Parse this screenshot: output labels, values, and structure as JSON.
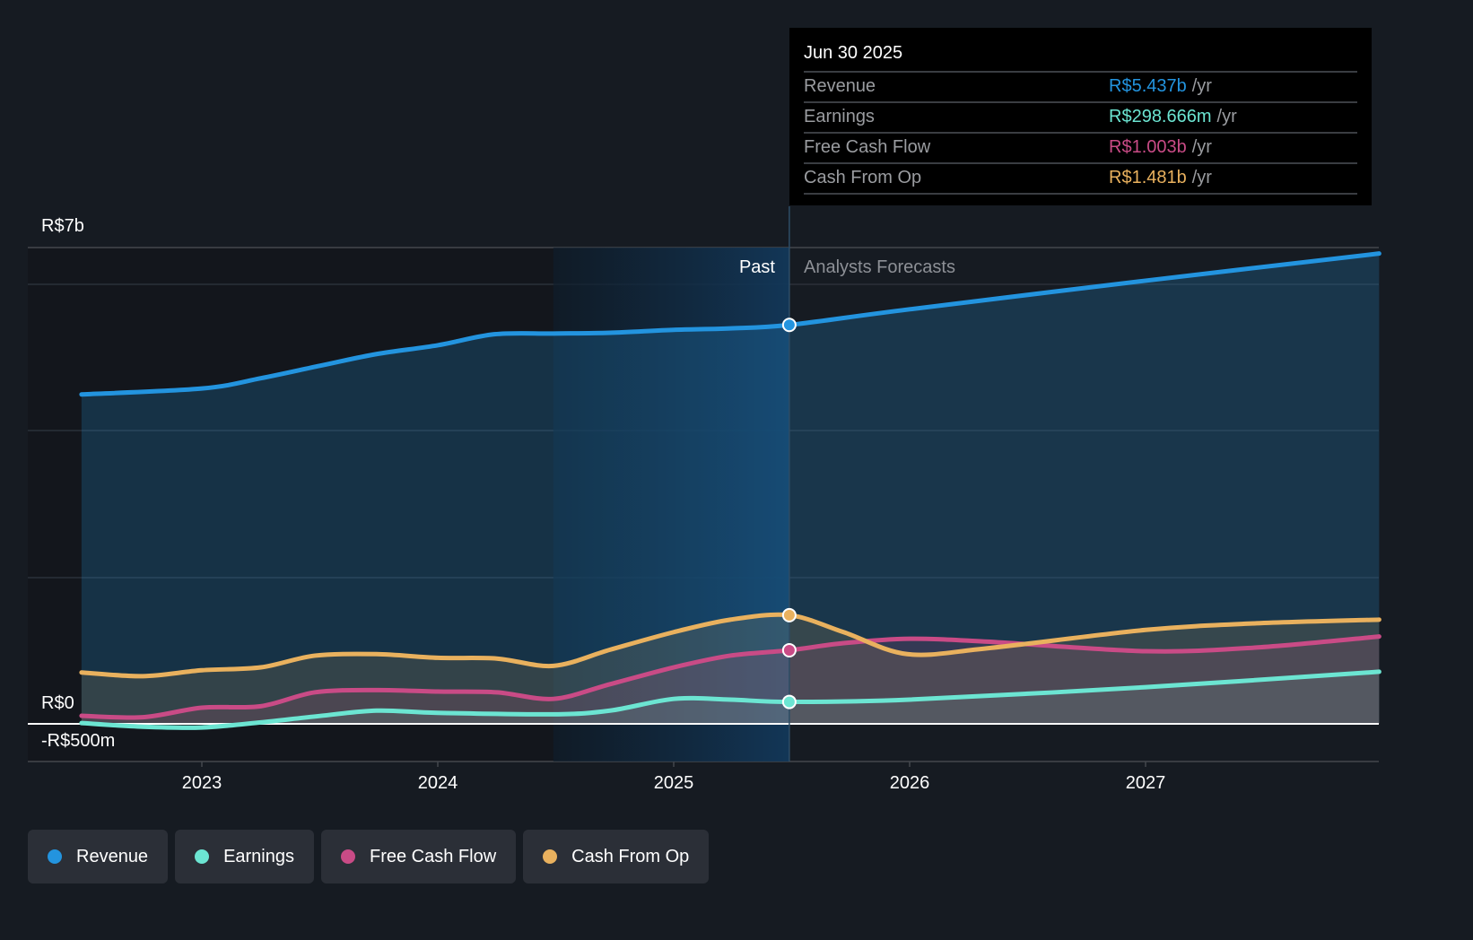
{
  "tooltip": {
    "date": "Jun 30 2025",
    "rows": [
      {
        "label": "Revenue",
        "value": "R$5.437b",
        "unit": "/yr",
        "color": "#2394df"
      },
      {
        "label": "Earnings",
        "value": "R$298.666m",
        "unit": "/yr",
        "color": "#6ce5d2"
      },
      {
        "label": "Free Cash Flow",
        "value": "R$1.003b",
        "unit": "/yr",
        "color": "#c94b86"
      },
      {
        "label": "Cash From Op",
        "value": "R$1.481b",
        "unit": "/yr",
        "color": "#e9b15e"
      }
    ]
  },
  "regions": {
    "past": "Past",
    "forecast": "Analysts Forecasts"
  },
  "chart_data": {
    "type": "line",
    "title": "",
    "xlabel": "",
    "ylabel": "",
    "y_axis_labels": {
      "top": "R$7b",
      "zero": "R$0",
      "bottom": "-R$500m"
    },
    "ylim": [
      -0.5,
      6.5
    ],
    "xlim": [
      2022.49,
      2027.99
    ],
    "x_ticks": [
      2023,
      2024,
      2025,
      2026,
      2027
    ],
    "x_tick_labels": [
      "2023",
      "2024",
      "2025",
      "2026",
      "2027"
    ],
    "unit": "R$ billions",
    "past_end": 2025.49,
    "highlight_start": 2024.49,
    "grid": true,
    "legend_position": "bottom-left",
    "series": [
      {
        "name": "Revenue",
        "color": "#2394df",
        "points": [
          [
            2022.49,
            4.49
          ],
          [
            2023.0,
            4.57
          ],
          [
            2023.25,
            4.71
          ],
          [
            2023.5,
            4.88
          ],
          [
            2023.74,
            5.04
          ],
          [
            2024.0,
            5.16
          ],
          [
            2024.24,
            5.31
          ],
          [
            2024.49,
            5.32
          ],
          [
            2024.73,
            5.33
          ],
          [
            2025.0,
            5.37
          ],
          [
            2025.24,
            5.39
          ],
          [
            2025.49,
            5.437
          ],
          [
            2026.0,
            5.65
          ],
          [
            2027.0,
            6.04
          ],
          [
            2027.99,
            6.41
          ]
        ]
      },
      {
        "name": "Earnings",
        "color": "#6ce5d2",
        "points": [
          [
            2022.49,
            0.01
          ],
          [
            2022.75,
            -0.04
          ],
          [
            2023.0,
            -0.05
          ],
          [
            2023.25,
            0.02
          ],
          [
            2023.48,
            0.1
          ],
          [
            2023.74,
            0.18
          ],
          [
            2024.0,
            0.15
          ],
          [
            2024.49,
            0.13
          ],
          [
            2024.73,
            0.18
          ],
          [
            2025.0,
            0.34
          ],
          [
            2025.24,
            0.33
          ],
          [
            2025.49,
            0.2987
          ],
          [
            2026.0,
            0.33
          ],
          [
            2027.0,
            0.5
          ],
          [
            2027.99,
            0.71
          ]
        ]
      },
      {
        "name": "Free Cash Flow",
        "color": "#c94b86",
        "points": [
          [
            2022.49,
            0.11
          ],
          [
            2022.75,
            0.09
          ],
          [
            2023.0,
            0.22
          ],
          [
            2023.25,
            0.24
          ],
          [
            2023.48,
            0.43
          ],
          [
            2023.74,
            0.46
          ],
          [
            2024.0,
            0.44
          ],
          [
            2024.25,
            0.43
          ],
          [
            2024.49,
            0.34
          ],
          [
            2024.73,
            0.54
          ],
          [
            2025.0,
            0.77
          ],
          [
            2025.24,
            0.93
          ],
          [
            2025.49,
            1.003
          ],
          [
            2025.72,
            1.1
          ],
          [
            2026.0,
            1.16
          ],
          [
            2026.33,
            1.12
          ],
          [
            2027.0,
            0.99
          ],
          [
            2027.47,
            1.04
          ],
          [
            2027.99,
            1.19
          ]
        ]
      },
      {
        "name": "Cash From Op",
        "color": "#e9b15e",
        "points": [
          [
            2022.49,
            0.7
          ],
          [
            2022.75,
            0.65
          ],
          [
            2023.0,
            0.73
          ],
          [
            2023.25,
            0.77
          ],
          [
            2023.48,
            0.93
          ],
          [
            2023.74,
            0.95
          ],
          [
            2024.0,
            0.9
          ],
          [
            2024.25,
            0.89
          ],
          [
            2024.49,
            0.79
          ],
          [
            2024.73,
            1.01
          ],
          [
            2025.0,
            1.25
          ],
          [
            2025.24,
            1.42
          ],
          [
            2025.49,
            1.481
          ],
          [
            2025.72,
            1.25
          ],
          [
            2025.99,
            0.95
          ],
          [
            2026.33,
            1.03
          ],
          [
            2027.0,
            1.28
          ],
          [
            2027.47,
            1.37
          ],
          [
            2027.99,
            1.42
          ]
        ]
      }
    ]
  },
  "legend": [
    {
      "label": "Revenue",
      "color": "#2394df"
    },
    {
      "label": "Earnings",
      "color": "#6ce5d2"
    },
    {
      "label": "Free Cash Flow",
      "color": "#c94b86"
    },
    {
      "label": "Cash From Op",
      "color": "#e9b15e"
    }
  ]
}
